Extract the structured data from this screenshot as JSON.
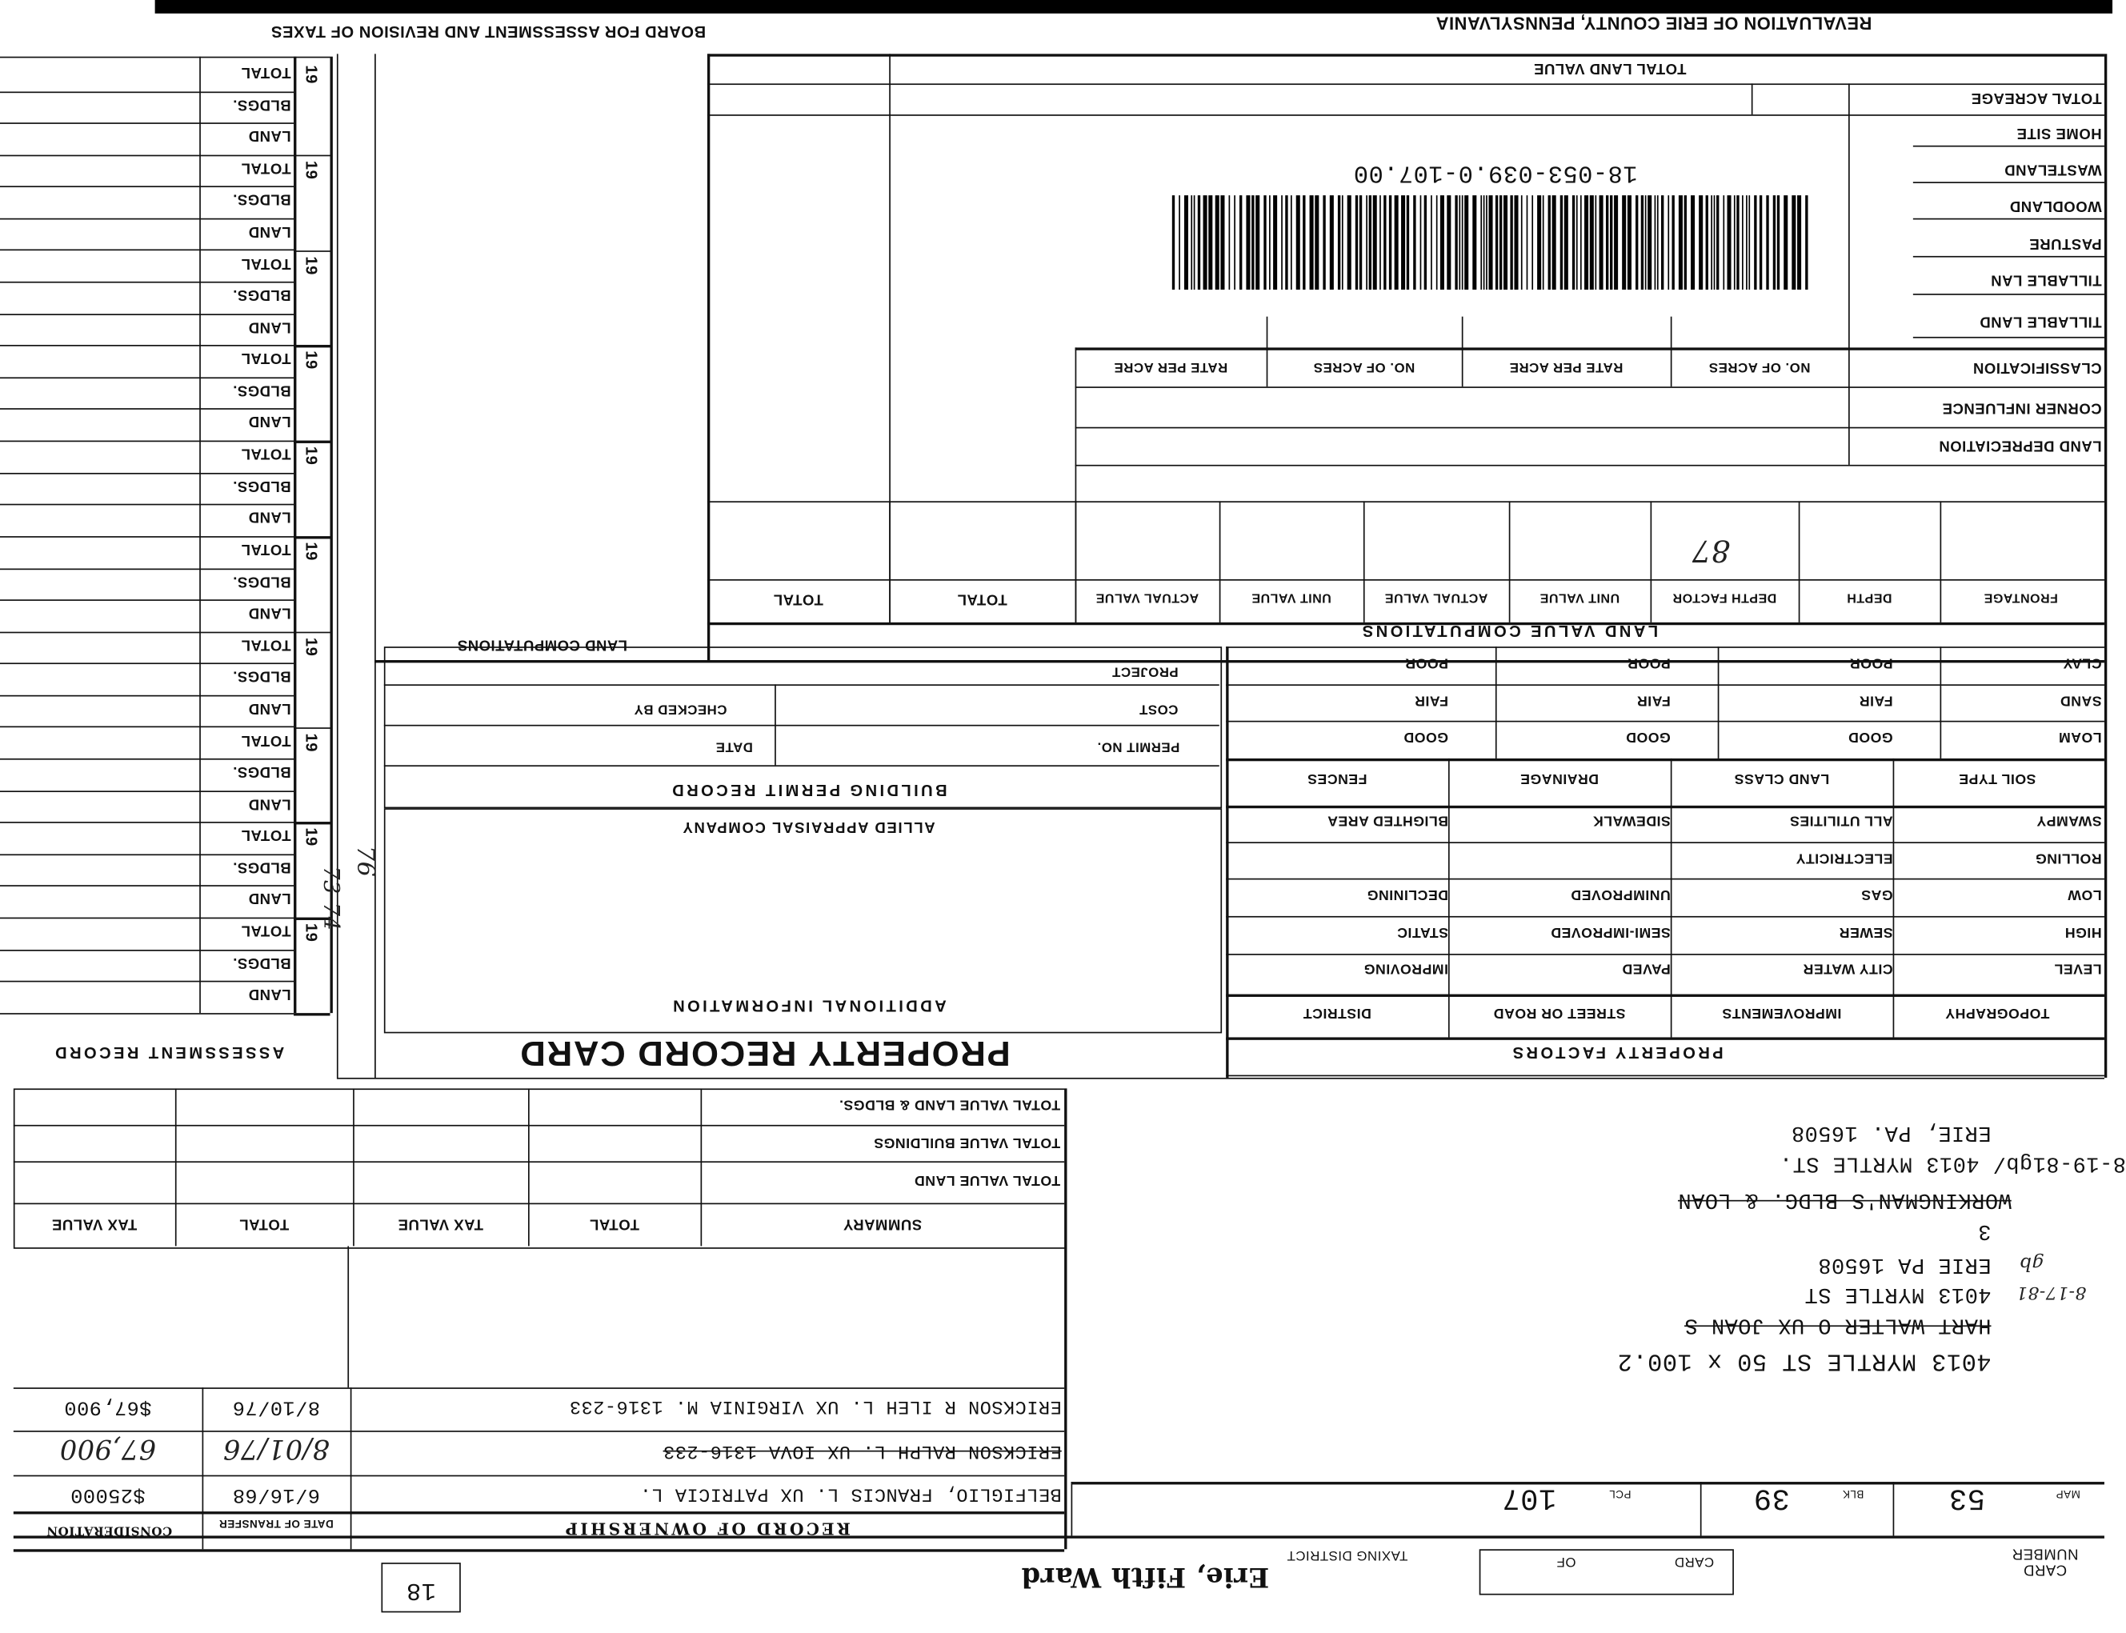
{
  "header": {
    "title": "REVALUATION OF ERIE COUNTY, PENNSYLVANIA",
    "board": "BOARD FOR ASSESSMENT AND REVISION OF TAXES"
  },
  "land": {
    "total_land_value": "TOTAL LAND VALUE",
    "total_acreage": "TOTAL ACREAGE",
    "home_site": "HOME SITE",
    "wasteland": "WASTELAND",
    "woodland": "WOODLAND",
    "pasture": "PASTURE",
    "tillable_lan": "TILLABLE LAN",
    "tillable_land": "TILLABLE LAND",
    "classification": "CLASSIFICATION",
    "corner_influence": "CORNER INFLUENCE",
    "land_depreciation": "LAND DEPRECIATION",
    "no_of_acres": "NO. OF ACRES",
    "rate_per_acre": "RATE PER ACRE",
    "columns": [
      "FRONTAGE",
      "DEPTH",
      "DEPTH FACTOR",
      "UNIT VALUE",
      "ACTUAL VALUE",
      "UNIT VALUE",
      "ACTUAL VALUE",
      "TOTAL",
      "TOTAL"
    ],
    "depth_factor_value": "87",
    "section_title": "LAND VALUE COMPUTATIONS"
  },
  "parcel_id": "18-053-039.0-107.00",
  "land_computations": "LAND COMPUTATIONS",
  "assessment": {
    "year_prefix": "19",
    "labels": [
      "TOTAL",
      "BLDGS.",
      "LAND"
    ],
    "title": "ASSESSMENT RECORD",
    "years": [
      "73",
      "74",
      "76"
    ]
  },
  "property_factors": {
    "soil_rows": [
      [
        "CLAY",
        "POOR",
        "POOR",
        "POOR"
      ],
      [
        "SAND",
        "FAIR",
        "FAIR",
        "FAIR"
      ],
      [
        "LOAM",
        "GOOD",
        "GOOD",
        "GOOD"
      ]
    ],
    "soil_headers": [
      "SOIL TYPE",
      "LAND CLASS",
      "DRAINAGE",
      "FENCES"
    ],
    "rows": [
      [
        "SWAMPY",
        "ALL UTILITIES",
        "SIDEWALK",
        "BLIGHTED AREA"
      ],
      [
        "ROLLING",
        "ELECTRICITY",
        "",
        ""
      ],
      [
        "LOW",
        "GAS",
        "UNIMPROVED",
        "DECLINING"
      ],
      [
        "HIGH",
        "SEWER",
        "SEMI-IMPROVED",
        "STATIC"
      ],
      [
        "LEVEL",
        "CITY WATER",
        "PAVED",
        "IMPROVING"
      ]
    ],
    "headers": [
      "TOPOGRAPHY",
      "IMPROVEMENTS",
      "STREET OR ROAD",
      "DISTRICT"
    ],
    "title": "PROPERTY FACTORS"
  },
  "permit": {
    "project": "PROJECT",
    "cost": "COST",
    "checked_by": "CHECKED BY",
    "permit_no": "PERMIT NO.",
    "date": "DATE",
    "title": "BUILDING PERMIT RECORD"
  },
  "additional": {
    "company": "ALLIED APPRAISAL COMPANY",
    "title": "ADDITIONAL INFORMATION"
  },
  "card_title": "PROPERTY RECORD CARD",
  "summary": {
    "rows": [
      "TOTAL VALUE LAND & BLDGS.",
      "TOTAL VALUE BUILDINGS",
      "TOTAL VALUE LAND"
    ],
    "headers": [
      "SUMMARY",
      "TOTAL",
      "TAX VALUE",
      "TOTAL",
      "TAX VALUE"
    ]
  },
  "ownership": {
    "title": "RECORD OF OWNERSHIP",
    "date_header": "DATE OF TRANSFER",
    "consideration_header": "CONSIDERATION",
    "rows": [
      {
        "name": "ERICKSON R ILEH L. UX VIRGINIA M. 1316-233",
        "date": "8/10/76",
        "consideration": "$67,900",
        "struck": false
      },
      {
        "name": "ERICKSON RALPH L. UX  IOVA 1316-233",
        "date": "8/01/76",
        "consideration": "67,900",
        "struck": true
      },
      {
        "name": "BELFIGLIO, FRANCIS L. UX PATRICIA L.",
        "date": "6/16/68",
        "consideration": "$25000",
        "struck": false
      }
    ]
  },
  "address": {
    "lines": [
      "4013 MYRTLE ST 50 x 100.2",
      "HART WALTER O UX JOAN S",
      "4013 MYRTLE ST",
      "ERIE PA 16508",
      "3",
      "WORKINGMAN'S BLDG. & LOAN",
      "8-19-81gb/ 4013 MYRTLE ST.",
      "ERIE, PA. 16508"
    ],
    "note_date": "8-17-81",
    "note_initials": "gb"
  },
  "ident": {
    "card_number": "CARD NUMBER",
    "map_label": "MAP",
    "map": "53",
    "blk_label": "BLK",
    "blk": "39",
    "pcl_label": "PCL",
    "pcl": "107",
    "card_label": "CARD",
    "of_label": "OF",
    "taxing_district": "TAXING DISTRICT",
    "district_name": "Erie, Fifth Ward",
    "box_number": "18"
  }
}
